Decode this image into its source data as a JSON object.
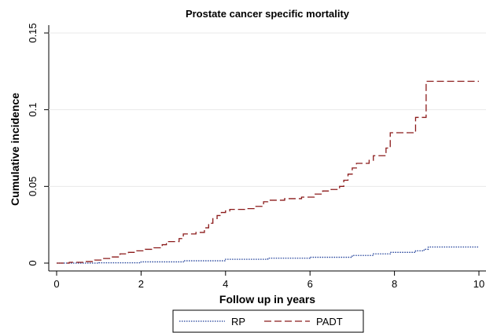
{
  "chart_data": {
    "type": "line",
    "step": "post",
    "title": "Prostate cancer specific mortality",
    "x_label": "Follow up in years",
    "y_label": "Cumulative incidence",
    "xlim": [
      0,
      10
    ],
    "ylim": [
      0,
      0.15
    ],
    "xticks": [
      0,
      2,
      4,
      6,
      8,
      10
    ],
    "yticks": [
      0,
      0.05,
      0.1,
      0.15
    ],
    "grid": true,
    "legend": "bottom",
    "series": [
      {
        "name": "RP",
        "color": "#1f3f99",
        "dash": "dotted",
        "x": [
          0,
          1,
          2,
          3,
          4,
          5,
          6,
          7,
          7.5,
          7.9,
          8.5,
          8.7,
          8.8,
          10
        ],
        "values": [
          0,
          0.0002,
          0.0008,
          0.0015,
          0.0025,
          0.0032,
          0.0038,
          0.005,
          0.006,
          0.007,
          0.008,
          0.009,
          0.0105,
          0.0105
        ]
      },
      {
        "name": "PADT",
        "color": "#8b1a1a",
        "dash": "dashed",
        "x": [
          0,
          0.3,
          0.7,
          0.9,
          1.1,
          1.3,
          1.5,
          1.7,
          1.9,
          2.1,
          2.3,
          2.5,
          2.6,
          2.9,
          3.0,
          3.3,
          3.5,
          3.6,
          3.7,
          3.8,
          3.9,
          4.0,
          4.1,
          4.5,
          4.7,
          4.9,
          5.0,
          5.4,
          5.8,
          6.1,
          6.3,
          6.5,
          6.7,
          6.8,
          6.9,
          7.0,
          7.1,
          7.4,
          7.5,
          7.8,
          7.9,
          8.5,
          8.75,
          10
        ],
        "values": [
          0,
          0.0005,
          0.001,
          0.002,
          0.003,
          0.004,
          0.006,
          0.007,
          0.008,
          0.009,
          0.01,
          0.012,
          0.014,
          0.016,
          0.019,
          0.02,
          0.023,
          0.026,
          0.029,
          0.031,
          0.033,
          0.034,
          0.035,
          0.0355,
          0.037,
          0.04,
          0.041,
          0.042,
          0.043,
          0.045,
          0.047,
          0.048,
          0.05,
          0.054,
          0.058,
          0.062,
          0.065,
          0.067,
          0.07,
          0.075,
          0.085,
          0.095,
          0.1185,
          0.1185
        ]
      }
    ]
  }
}
